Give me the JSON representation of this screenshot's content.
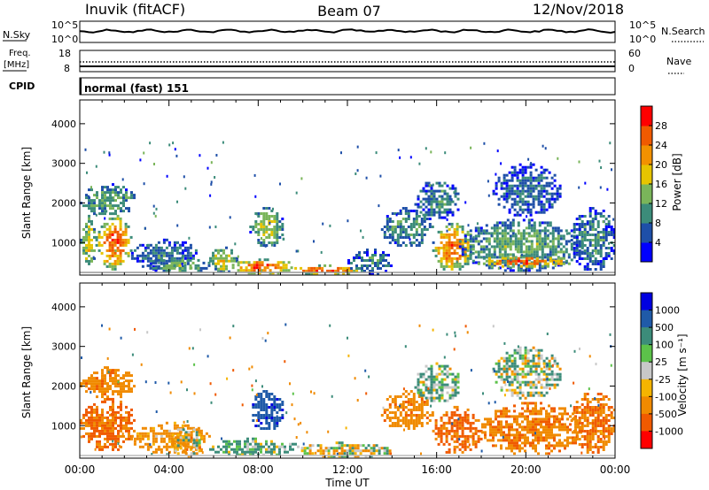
{
  "header": {
    "station": "Inuvik (fitACF)",
    "beam": "Beam 07",
    "date": "12/Nov/2018"
  },
  "top_panels": {
    "nsky_label": "N.Sky",
    "nsky_ticks": [
      "10^5",
      "10^0"
    ],
    "nsearch_label": "N.Search",
    "nsearch_ticks": [
      "10^5",
      "10^0"
    ],
    "freq_label_line1": "Freq.",
    "freq_label_line2": "[MHz]",
    "freq_ticks": [
      "18",
      "8"
    ],
    "nave_label": "Nave",
    "nave_ticks": [
      "60",
      "0"
    ],
    "cpid_label": "CPID",
    "cpid_value": "normal (fast) 151"
  },
  "x_axis": {
    "ticks": [
      "00:00",
      "04:00",
      "08:00",
      "12:00",
      "16:00",
      "20:00",
      "00:00"
    ],
    "label": "Time UT"
  },
  "colors": {
    "power_scale": [
      "#0000ff",
      "#1e4fa8",
      "#3c8c7a",
      "#7ab55a",
      "#e6c400",
      "#f29100",
      "#f05a00",
      "#ff0000"
    ],
    "velocity_scale": [
      "#0000e0",
      "#1f5aa8",
      "#3c8c7a",
      "#5cc24a",
      "#c8c8c8",
      "#f5b400",
      "#f08a00",
      "#f05a00",
      "#ff0000"
    ],
    "ground_scatter": "#b4b4b4"
  },
  "chart_data": [
    {
      "type": "heatmap",
      "name": "power",
      "ylabel": "Slant Range [km]",
      "yticks": [
        "1000",
        "2000",
        "3000",
        "4000"
      ],
      "ylim": [
        180,
        4600
      ],
      "xlim_hours": [
        0,
        24
      ],
      "colorbar_label": "Power [dB]",
      "colorbar_ticks": [
        "4",
        "8",
        "12",
        "16",
        "20",
        "24",
        "28"
      ],
      "colorbar_range": [
        0,
        32
      ],
      "blobs": [
        {
          "t0": 0.0,
          "t1": 0.7,
          "r0": 400,
          "r1": 1700,
          "v": 18
        },
        {
          "t0": 0.7,
          "t1": 2.3,
          "r0": 350,
          "r1": 1700,
          "v": 27
        },
        {
          "t0": 0.0,
          "t1": 2.5,
          "r0": 1700,
          "r1": 2500,
          "v": 13
        },
        {
          "t0": 2.3,
          "t1": 5.3,
          "r0": 320,
          "r1": 1100,
          "v": 9
        },
        {
          "t0": 3.0,
          "t1": 5.8,
          "r0": 250,
          "r1": 650,
          "v": 14
        },
        {
          "t0": 5.8,
          "t1": 7.0,
          "r0": 250,
          "r1": 900,
          "v": 18
        },
        {
          "t0": 6.7,
          "t1": 9.7,
          "r0": 250,
          "r1": 600,
          "v": 27
        },
        {
          "t0": 7.6,
          "t1": 9.1,
          "r0": 900,
          "r1": 1900,
          "v": 16
        },
        {
          "t0": 9.5,
          "t1": 12.5,
          "r0": 220,
          "r1": 450,
          "v": 28
        },
        {
          "t0": 12.0,
          "t1": 14.0,
          "r0": 220,
          "r1": 850,
          "v": 9
        },
        {
          "t0": 13.5,
          "t1": 15.8,
          "r0": 900,
          "r1": 1900,
          "v": 11
        },
        {
          "t0": 15.8,
          "t1": 17.6,
          "r0": 300,
          "r1": 1500,
          "v": 25
        },
        {
          "t0": 15.0,
          "t1": 17.0,
          "r0": 1600,
          "r1": 2600,
          "v": 10
        },
        {
          "t0": 17.0,
          "t1": 22.5,
          "r0": 300,
          "r1": 1600,
          "v": 13
        },
        {
          "t0": 17.6,
          "t1": 22.0,
          "r0": 400,
          "r1": 700,
          "v": 27
        },
        {
          "t0": 18.5,
          "t1": 21.5,
          "r0": 1700,
          "r1": 3000,
          "v": 8
        },
        {
          "t0": 22.0,
          "t1": 24.0,
          "r0": 300,
          "r1": 1900,
          "v": 10
        }
      ]
    },
    {
      "type": "heatmap",
      "name": "velocity",
      "ylabel": "Slant Range [km]",
      "yticks": [
        "1000",
        "2000",
        "3000",
        "4000"
      ],
      "ylim": [
        180,
        4600
      ],
      "xlim_hours": [
        0,
        24
      ],
      "colorbar_label": "Velocity [m s⁻¹]",
      "colorbar_ticks": [
        "1000",
        "500",
        "100",
        "25",
        "-25",
        "-100",
        "-500",
        "-1000"
      ],
      "blobs": [
        {
          "t0": 0.0,
          "t1": 2.5,
          "r0": 400,
          "r1": 1700,
          "v": -300
        },
        {
          "t0": 0.0,
          "t1": 2.5,
          "r0": 1700,
          "r1": 2500,
          "v": -200
        },
        {
          "t0": 2.3,
          "t1": 5.8,
          "r0": 300,
          "r1": 1100,
          "v": -150
        },
        {
          "t0": 4.0,
          "t1": 5.5,
          "r0": 250,
          "r1": 1000,
          "v": 0
        },
        {
          "t0": 5.8,
          "t1": 9.8,
          "r0": 250,
          "r1": 700,
          "v": 80
        },
        {
          "t0": 7.6,
          "t1": 9.1,
          "r0": 900,
          "r1": 1900,
          "v": 600
        },
        {
          "t0": 9.8,
          "t1": 14.0,
          "r0": 220,
          "r1": 600,
          "v": 0
        },
        {
          "t0": 13.5,
          "t1": 15.8,
          "r0": 900,
          "r1": 1900,
          "v": -200
        },
        {
          "t0": 15.8,
          "t1": 18.0,
          "r0": 300,
          "r1": 1500,
          "v": -350
        },
        {
          "t0": 15.0,
          "t1": 17.0,
          "r0": 1600,
          "r1": 2600,
          "v": 60
        },
        {
          "t0": 18.0,
          "t1": 22.5,
          "r0": 300,
          "r1": 1600,
          "v": -250
        },
        {
          "t0": 18.5,
          "t1": 21.5,
          "r0": 1700,
          "r1": 3000,
          "v": 40
        },
        {
          "t0": 22.0,
          "t1": 24.0,
          "r0": 300,
          "r1": 1900,
          "v": -300
        }
      ]
    }
  ]
}
